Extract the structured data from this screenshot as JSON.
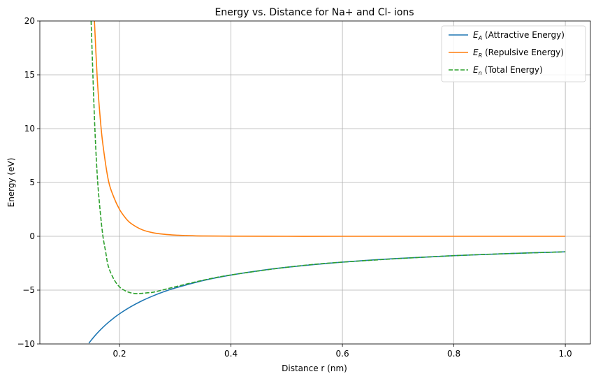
{
  "chart_data": {
    "type": "line",
    "title": "Energy vs. Distance for Na+ and Cl- ions",
    "xlabel": "Distance r (nm)",
    "ylabel": "Energy (eV)",
    "xlim": [
      0.057,
      1.045
    ],
    "ylim": [
      -10,
      20
    ],
    "xticks": [
      0.2,
      0.4,
      0.6,
      0.8,
      1.0
    ],
    "xtick_labels": [
      "0.2",
      "0.4",
      "0.6",
      "0.8",
      "1.0"
    ],
    "yticks": [
      -10,
      -5,
      0,
      5,
      10,
      15,
      20
    ],
    "ytick_labels": [
      "−10",
      "−5",
      "0",
      "5",
      "10",
      "15",
      "20"
    ],
    "grid": true,
    "legend_position": "top-right",
    "series": [
      {
        "key": "attractive",
        "name_symbol": "E",
        "name_sub": "A",
        "name_rest": " (Attractive Energy)",
        "color": "#1f77b4",
        "dash": "solid",
        "x": [
          0.145,
          0.15,
          0.16,
          0.17,
          0.18,
          0.19,
          0.2,
          0.22,
          0.24,
          0.26,
          0.28,
          0.3,
          0.35,
          0.4,
          0.45,
          0.5,
          0.6,
          0.7,
          0.8,
          0.9,
          1.0
        ],
        "y": [
          -9.93,
          -9.6,
          -9.0,
          -8.47,
          -8.0,
          -7.58,
          -7.2,
          -6.55,
          -6.0,
          -5.54,
          -5.14,
          -4.8,
          -4.11,
          -3.6,
          -3.2,
          -2.88,
          -2.4,
          -2.06,
          -1.8,
          -1.6,
          -1.44
        ]
      },
      {
        "key": "repulsive",
        "name_symbol": "E",
        "name_sub": "R",
        "name_rest": " (Repulsive Energy)",
        "color": "#ff7f0e",
        "dash": "solid",
        "x": [
          0.155,
          0.16,
          0.165,
          0.17,
          0.18,
          0.19,
          0.2,
          0.21,
          0.22,
          0.24,
          0.26,
          0.28,
          0.3,
          0.32,
          0.35,
          0.4,
          0.5,
          0.6,
          0.8,
          1.0
        ],
        "y": [
          20.0,
          14.7,
          11.2,
          8.6,
          5.2,
          3.6,
          2.5,
          1.75,
          1.22,
          0.62,
          0.33,
          0.19,
          0.11,
          0.07,
          0.03,
          0.01,
          0.0,
          0.0,
          0.0,
          0.0
        ]
      },
      {
        "key": "total",
        "name_symbol": "E",
        "name_sub": "n",
        "name_rest": " (Total Energy)",
        "color": "#2ca02c",
        "dash": "dashed",
        "x": [
          0.149,
          0.155,
          0.16,
          0.165,
          0.17,
          0.175,
          0.18,
          0.19,
          0.2,
          0.21,
          0.22,
          0.23,
          0.24,
          0.25,
          0.26,
          0.28,
          0.3,
          0.35,
          0.4,
          0.5,
          0.6,
          0.8,
          1.0
        ],
        "y": [
          20.0,
          11.0,
          5.7,
          2.5,
          0.1,
          -1.4,
          -2.8,
          -4.0,
          -4.7,
          -5.05,
          -5.25,
          -5.32,
          -5.3,
          -5.25,
          -5.2,
          -4.95,
          -4.69,
          -4.08,
          -3.59,
          -2.88,
          -2.4,
          -1.8,
          -1.44
        ]
      }
    ]
  }
}
